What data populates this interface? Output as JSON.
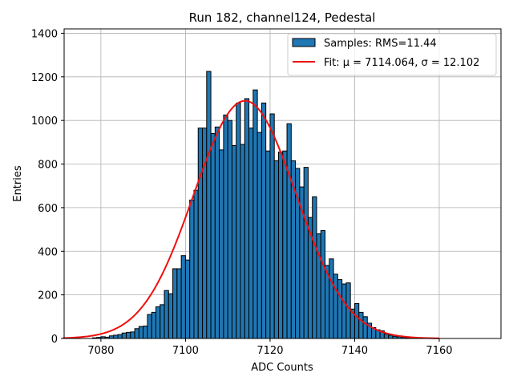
{
  "chart_data": {
    "type": "bar",
    "title": "Run 182, channel124, Pedestal",
    "xlabel": "ADC Counts",
    "ylabel": "Entries",
    "xlim": [
      7071.3,
      7174.6
    ],
    "ylim": [
      0,
      1420
    ],
    "xticks": [
      7080,
      7100,
      7120,
      7140,
      7160
    ],
    "yticks": [
      0,
      200,
      400,
      600,
      800,
      1000,
      1200,
      1400
    ],
    "grid": true,
    "legend_position": "top-right",
    "bin_width": 1,
    "series": [
      {
        "name": "Samples: RMS=11.44",
        "kind": "histogram",
        "color": "#1f77b4",
        "bin_starts": [
          7078,
          7079,
          7080,
          7081,
          7082,
          7083,
          7084,
          7085,
          7086,
          7087,
          7088,
          7089,
          7090,
          7091,
          7092,
          7093,
          7094,
          7095,
          7096,
          7097,
          7098,
          7099,
          7100,
          7101,
          7102,
          7103,
          7104,
          7105,
          7106,
          7107,
          7108,
          7109,
          7110,
          7111,
          7112,
          7113,
          7114,
          7115,
          7116,
          7117,
          7118,
          7119,
          7120,
          7121,
          7122,
          7123,
          7124,
          7125,
          7126,
          7127,
          7128,
          7129,
          7130,
          7131,
          7132,
          7133,
          7134,
          7135,
          7136,
          7137,
          7138,
          7139,
          7140,
          7141,
          7142,
          7143,
          7144,
          7145,
          7146,
          7147,
          7148,
          7149,
          7150,
          7151,
          7152,
          7153,
          7154
        ],
        "values": [
          3,
          5,
          8,
          6,
          12,
          15,
          18,
          25,
          28,
          30,
          45,
          55,
          57,
          110,
          120,
          145,
          155,
          220,
          205,
          320,
          320,
          380,
          360,
          635,
          680,
          965,
          965,
          1225,
          940,
          970,
          865,
          1025,
          1000,
          885,
          1080,
          890,
          1100,
          965,
          1140,
          945,
          1080,
          860,
          1030,
          815,
          855,
          860,
          985,
          815,
          780,
          695,
          785,
          555,
          650,
          480,
          495,
          335,
          365,
          295,
          270,
          250,
          255,
          135,
          160,
          120,
          100,
          70,
          50,
          40,
          35,
          20,
          15,
          10,
          8,
          5,
          4,
          3,
          2
        ]
      },
      {
        "name": "Fit: μ = 7114.064, σ = 12.102",
        "kind": "gaussian",
        "color": "#ee1111",
        "mu": 7114.064,
        "sigma": 12.102,
        "amplitude": 1090,
        "x_range": [
          7071,
          7160
        ]
      }
    ]
  }
}
